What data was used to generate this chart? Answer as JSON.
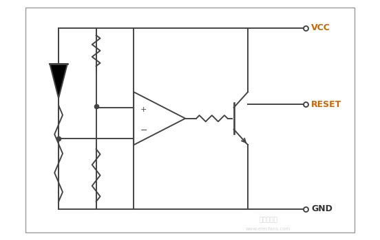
{
  "bg_color": "#ffffff",
  "border_color": "#aaaaaa",
  "line_color": "#444444",
  "vcc_color": "#cc6600",
  "reset_color": "#cc6600",
  "gnd_color": "#333333",
  "fig_width": 5.52,
  "fig_height": 3.5,
  "dpi": 100,
  "labels": {
    "VCC": "VCC",
    "RESET": "RESET",
    "GND": "GND"
  },
  "xlim": [
    0,
    11
  ],
  "ylim": [
    0,
    7.7
  ]
}
